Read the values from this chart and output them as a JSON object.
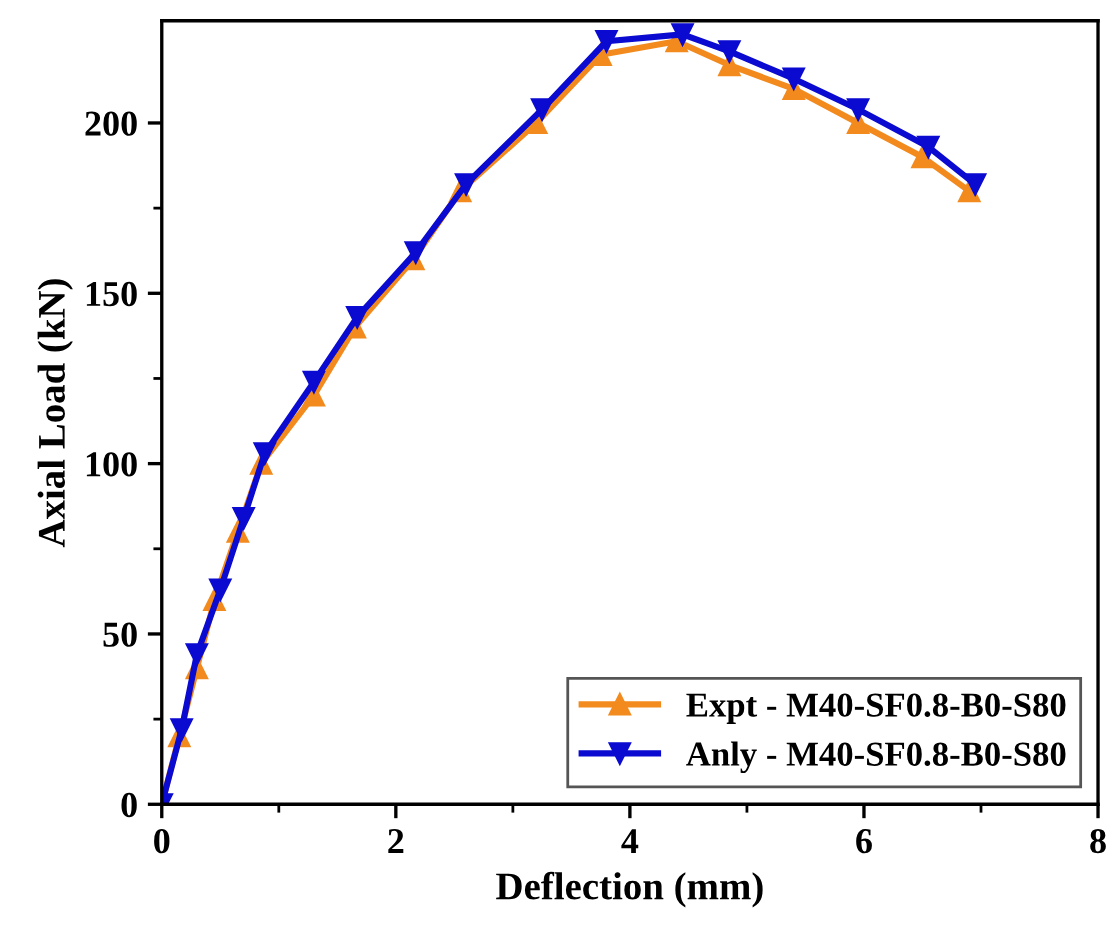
{
  "chart_data": {
    "type": "line",
    "xlabel": "Deflection (mm)",
    "ylabel": "Axial Load (kN)",
    "xlim": [
      0,
      8
    ],
    "xticks": [
      0,
      2,
      4,
      6,
      8
    ],
    "ylim": [
      0,
      230
    ],
    "yticks": [
      0,
      50,
      100,
      150,
      200
    ],
    "grid": false,
    "legend": "bottom right",
    "series": [
      {
        "name": "Expt - M40-SF0.8-B0-S80",
        "color": "#f28a1e",
        "marker": "triangle",
        "line_style": "solid",
        "x": [
          0,
          0.15,
          0.3,
          0.45,
          0.65,
          0.85,
          1.3,
          1.65,
          2.15,
          2.55,
          3.2,
          3.75,
          4.4,
          4.85,
          5.4,
          5.95,
          6.5,
          6.9
        ],
        "values": [
          0,
          20,
          40,
          60,
          80,
          100,
          120,
          140,
          160,
          180,
          200,
          220,
          224,
          217,
          210,
          200,
          190,
          180
        ]
      },
      {
        "name": "Anly - M40-SF0.8-B0-S80",
        "color": "#0a0ad0",
        "marker": "triangle_down",
        "line_style": "solid",
        "x": [
          0,
          0.17,
          0.3,
          0.5,
          0.7,
          0.88,
          1.3,
          1.67,
          2.17,
          2.6,
          3.25,
          3.8,
          4.45,
          4.85,
          5.4,
          5.95,
          6.55,
          6.95
        ],
        "values": [
          0,
          22,
          44,
          63,
          84,
          103,
          124,
          143,
          162,
          182,
          204,
          224,
          226,
          221,
          213,
          204,
          193,
          182
        ]
      }
    ]
  }
}
